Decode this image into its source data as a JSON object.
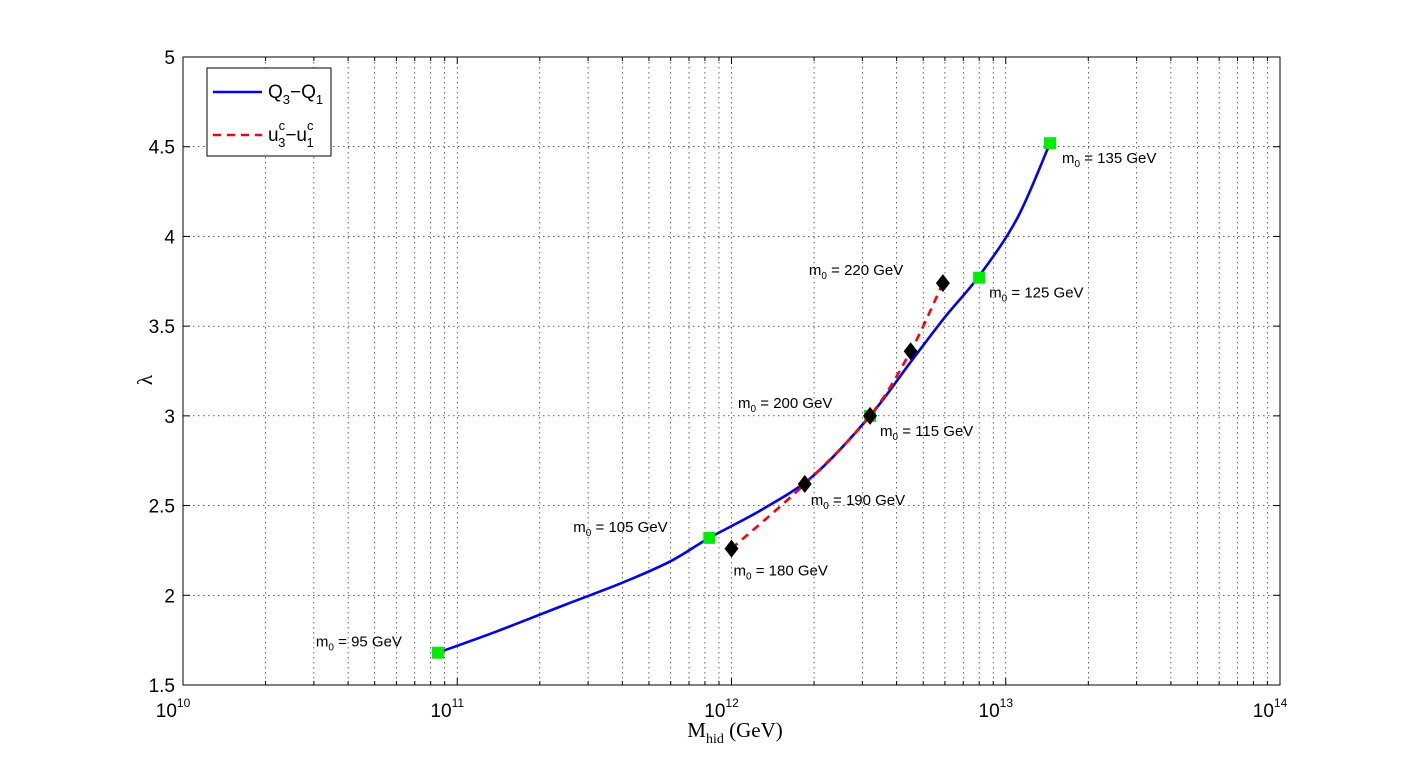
{
  "chart_data": {
    "type": "line",
    "xscale": "log",
    "xlim": [
      10000000000.0,
      100000000000000.0
    ],
    "ylim": [
      1.5,
      5
    ],
    "grid": true,
    "legend_position": "top-left",
    "xlabel": {
      "main": "M",
      "sub": "hid",
      "suffix": " (GeV)"
    },
    "ylabel": "λ",
    "x_ticks": [
      {
        "value": 10000000000.0,
        "base": "10",
        "exp": "10"
      },
      {
        "value": 100000000000.0,
        "base": "10",
        "exp": "11"
      },
      {
        "value": 1000000000000.0,
        "base": "10",
        "exp": "12"
      },
      {
        "value": 10000000000000.0,
        "base": "10",
        "exp": "13"
      },
      {
        "value": 100000000000000.0,
        "base": "10",
        "exp": "14"
      }
    ],
    "y_ticks": [
      {
        "value": 1.5,
        "label": "1.5"
      },
      {
        "value": 2,
        "label": "2"
      },
      {
        "value": 2.5,
        "label": "2.5"
      },
      {
        "value": 3,
        "label": "3"
      },
      {
        "value": 3.5,
        "label": "3.5"
      },
      {
        "value": 4,
        "label": "4"
      },
      {
        "value": 4.5,
        "label": "4.5"
      },
      {
        "value": 5,
        "label": "5"
      }
    ],
    "series": [
      {
        "id": "q",
        "legend": {
          "a": "Q",
          "a_sub": "3",
          "mid": "−",
          "b": "Q",
          "b_sub": "1"
        },
        "color": "#0000ff",
        "style": "solid",
        "curve": [
          [
            85000000000.0,
            1.68
          ],
          [
            140000000000.0,
            1.8
          ],
          [
            250000000000.0,
            1.95
          ],
          [
            400000000000.0,
            2.07
          ],
          [
            600000000000.0,
            2.19
          ],
          [
            830000000000.0,
            2.32
          ],
          [
            1300000000000.0,
            2.48
          ],
          [
            2000000000000.0,
            2.67
          ],
          [
            3200000000000.0,
            3.0
          ],
          [
            4500000000000.0,
            3.3
          ],
          [
            6000000000000.0,
            3.55
          ],
          [
            8000000000000.0,
            3.78
          ],
          [
            11000000000000.0,
            4.1
          ],
          [
            14500000000000.0,
            4.52
          ]
        ],
        "markers": [
          {
            "x": 85000000000.0,
            "y": 1.68,
            "label": "95 GeV"
          },
          {
            "x": 830000000000.0,
            "y": 2.32,
            "label": "105 GeV"
          },
          {
            "x": 3200000000000.0,
            "y": 3.0,
            "label": "115 GeV"
          },
          {
            "x": 8000000000000.0,
            "y": 3.77,
            "label": "125 GeV"
          },
          {
            "x": 14500000000000.0,
            "y": 4.52,
            "label": "135 GeV"
          }
        ],
        "marker_shape": "square",
        "marker_color": "#00ee00"
      },
      {
        "id": "u",
        "legend": {
          "a": "u",
          "a_sup": "c",
          "a_sub": "3",
          "mid": "−",
          "b": "u",
          "b_sup": "c",
          "b_sub": "1"
        },
        "color": "#ff0000",
        "style": "dashed",
        "curve": [
          [
            1000000000000.0,
            2.26
          ],
          [
            1850000000000.0,
            2.62
          ],
          [
            3200000000000.0,
            3.0
          ],
          [
            4500000000000.0,
            3.36
          ],
          [
            5900000000000.0,
            3.74
          ]
        ],
        "markers": [
          {
            "x": 1000000000000.0,
            "y": 2.26,
            "label": "180 GeV"
          },
          {
            "x": 1850000000000.0,
            "y": 2.62,
            "label": "190 GeV"
          },
          {
            "x": 3200000000000.0,
            "y": 3.0,
            "label": "200 GeV"
          },
          {
            "x": 4500000000000.0,
            "y": 3.36,
            "label": ""
          },
          {
            "x": 5900000000000.0,
            "y": 3.74,
            "label": "220 GeV"
          }
        ],
        "marker_shape": "diamond",
        "marker_color": "#000000"
      }
    ],
    "annotation_prefix": {
      "main": "m",
      "sub": "0",
      "eq": " = "
    }
  }
}
